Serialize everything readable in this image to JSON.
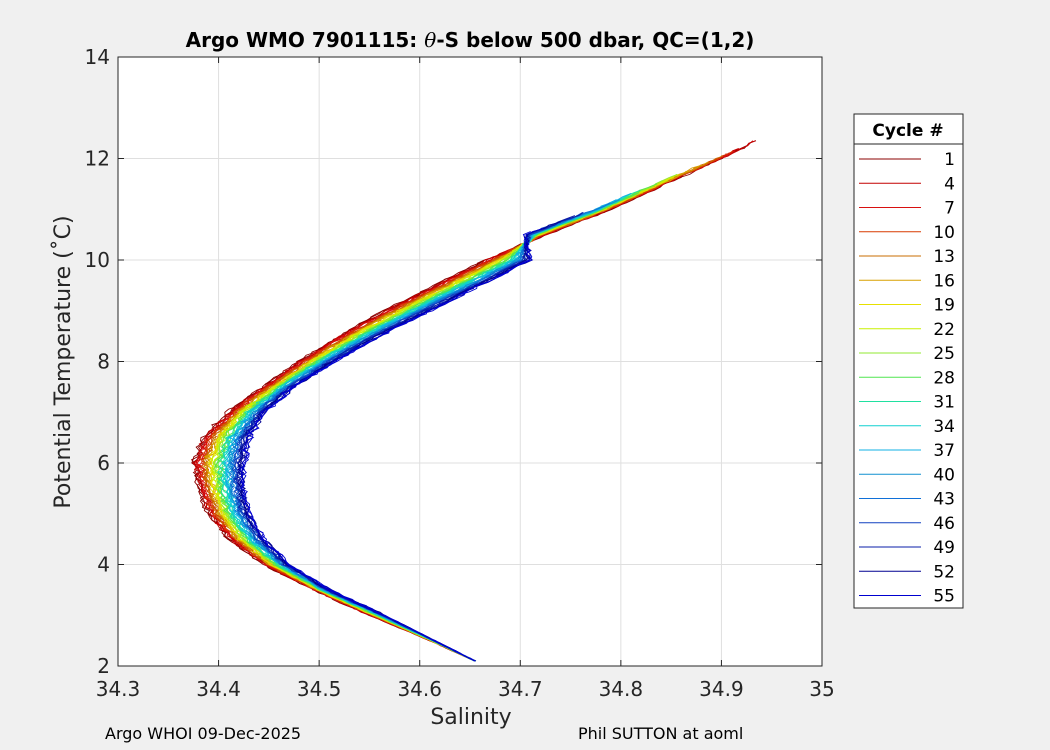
{
  "chart_data": {
    "type": "line",
    "title": "Argo WMO 7901115: θ-S below 500 dbar,  QC=(1,2)",
    "title_parts": {
      "prefix": "Argo WMO 7901115: ",
      "theta": "θ",
      "suffix": "-S below 500 dbar,  QC=(1,2)"
    },
    "xlabel": "Salinity",
    "ylabel": "Potential Temperature (˚C)",
    "xlim": [
      34.3,
      35.0
    ],
    "ylim": [
      2,
      14
    ],
    "xticks": [
      "34.3",
      "34.4",
      "34.5",
      "34.6",
      "34.7",
      "34.8",
      "34.9",
      "35"
    ],
    "yticks": [
      "2",
      "4",
      "6",
      "8",
      "10",
      "12",
      "14"
    ],
    "grid": true,
    "legend": {
      "title": "Cycle #",
      "position": "outside-right",
      "entries": [
        {
          "label": "1",
          "color": "#8b0000"
        },
        {
          "label": "4",
          "color": "#c40000"
        },
        {
          "label": "7",
          "color": "#d81010"
        },
        {
          "label": "10",
          "color": "#d83a00"
        },
        {
          "label": "13",
          "color": "#c86e00"
        },
        {
          "label": "16",
          "color": "#d8a000"
        },
        {
          "label": "19",
          "color": "#e6e000"
        },
        {
          "label": "22",
          "color": "#c8f000"
        },
        {
          "label": "25",
          "color": "#90ea30"
        },
        {
          "label": "28",
          "color": "#50e650"
        },
        {
          "label": "31",
          "color": "#20e0a0"
        },
        {
          "label": "34",
          "color": "#10d0d0"
        },
        {
          "label": "37",
          "color": "#10b0e6"
        },
        {
          "label": "40",
          "color": "#1090d0"
        },
        {
          "label": "43",
          "color": "#1070d8"
        },
        {
          "label": "46",
          "color": "#1040c0"
        },
        {
          "label": "49",
          "color": "#0a1ca8"
        },
        {
          "label": "52",
          "color": "#000090"
        },
        {
          "label": "55",
          "color": "#0000d0"
        }
      ]
    },
    "series_base": {
      "t": [
        2.1,
        2.5,
        3.0,
        3.5,
        4.0,
        4.5,
        5.0,
        5.5,
        6.0,
        6.5,
        7.0,
        7.5,
        8.0,
        8.5,
        9.0,
        9.5,
        10.0,
        10.5,
        11.0,
        11.5,
        12.0,
        12.4
      ],
      "s_cycle1": [
        34.655,
        34.61,
        34.55,
        34.495,
        34.445,
        34.41,
        34.39,
        34.38,
        34.375,
        34.385,
        34.41,
        34.445,
        34.48,
        34.52,
        34.565,
        34.615,
        34.665,
        34.725,
        34.79,
        34.845,
        34.9,
        34.94
      ],
      "s_cycle55": [
        34.655,
        34.615,
        34.565,
        34.51,
        34.47,
        34.445,
        34.43,
        34.425,
        34.425,
        34.43,
        34.445,
        34.475,
        34.515,
        34.56,
        34.61,
        34.66,
        34.71,
        null,
        null,
        null,
        null,
        null
      ]
    }
  },
  "footer": {
    "left": "Argo WHOI 09-Dec-2025",
    "right": "Phil SUTTON at aoml"
  }
}
